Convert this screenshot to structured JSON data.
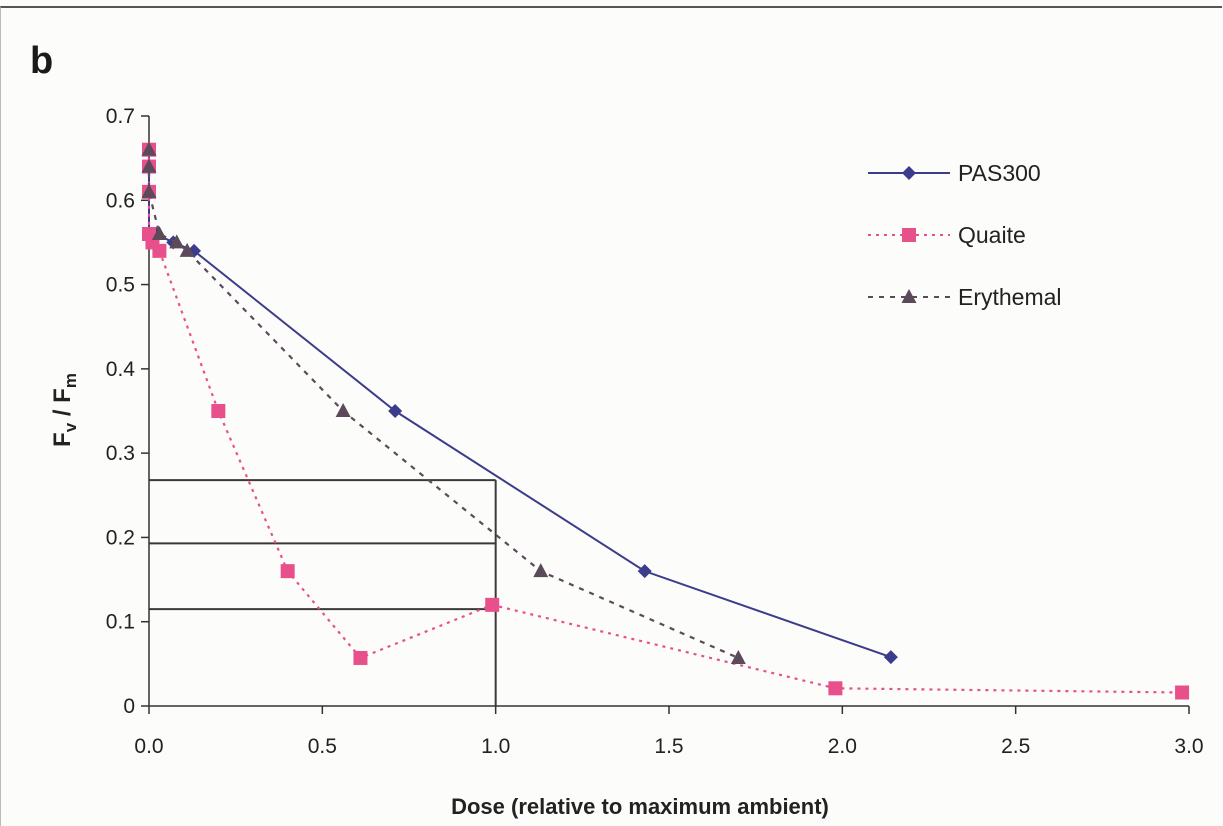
{
  "panel_label": "b",
  "chart_data": {
    "type": "line",
    "xlabel": "Dose (relative to maximum ambient)",
    "ylabel_main": "F",
    "ylabel_sub1": "v",
    "ylabel_mid": " / F",
    "ylabel_sub2": "m",
    "xlim": [
      0.0,
      3.0
    ],
    "ylim": [
      0,
      0.7
    ],
    "x_ticks": [
      0.0,
      0.5,
      1.0,
      1.5,
      2.0,
      2.5,
      3.0
    ],
    "x_tick_labels": [
      "0.0",
      "0.5",
      "1.0",
      "1.5",
      "2.0",
      "2.5",
      "3.0"
    ],
    "y_ticks": [
      0,
      0.1,
      0.2,
      0.3,
      0.4,
      0.5,
      0.6,
      0.7
    ],
    "y_tick_labels": [
      "0",
      "0.1",
      "0.2",
      "0.3",
      "0.4",
      "0.5",
      "0.6",
      "0.7"
    ],
    "grid": false,
    "legend_position": "top-right",
    "series": [
      {
        "name": "PAS300",
        "color": "#3c3c8c",
        "marker": "diamond",
        "line_style": "solid",
        "x": [
          0.0,
          0.0,
          0.0,
          0.0,
          0.02,
          0.07,
          0.13,
          0.71,
          1.43,
          2.14
        ],
        "y": [
          0.66,
          0.64,
          0.61,
          0.56,
          0.56,
          0.55,
          0.54,
          0.35,
          0.16,
          0.058
        ]
      },
      {
        "name": "Quaite",
        "color": "#e8508c",
        "marker": "square",
        "line_style": "dotted",
        "x": [
          0.0,
          0.0,
          0.0,
          0.0,
          0.01,
          0.03,
          0.2,
          0.4,
          0.61,
          0.99,
          1.98,
          2.98
        ],
        "y": [
          0.66,
          0.64,
          0.61,
          0.56,
          0.55,
          0.54,
          0.35,
          0.16,
          0.057,
          0.12,
          0.021,
          0.016
        ]
      },
      {
        "name": "Erythemal",
        "color": "#5a4a5a",
        "marker": "triangle",
        "line_style": "dashed",
        "x": [
          0.0,
          0.0,
          0.0,
          0.03,
          0.08,
          0.11,
          0.56,
          1.13,
          1.7
        ],
        "y": [
          0.66,
          0.64,
          0.61,
          0.56,
          0.55,
          0.54,
          0.35,
          0.16,
          0.057
        ]
      }
    ],
    "reference_lines": [
      {
        "from": [
          0.0,
          0.268
        ],
        "to": [
          1.0,
          0.268
        ]
      },
      {
        "from": [
          0.0,
          0.193
        ],
        "to": [
          1.0,
          0.193
        ]
      },
      {
        "from": [
          0.0,
          0.115
        ],
        "to": [
          1.0,
          0.115
        ]
      },
      {
        "from": [
          1.0,
          0.268
        ],
        "to": [
          1.0,
          0.0
        ]
      }
    ]
  }
}
